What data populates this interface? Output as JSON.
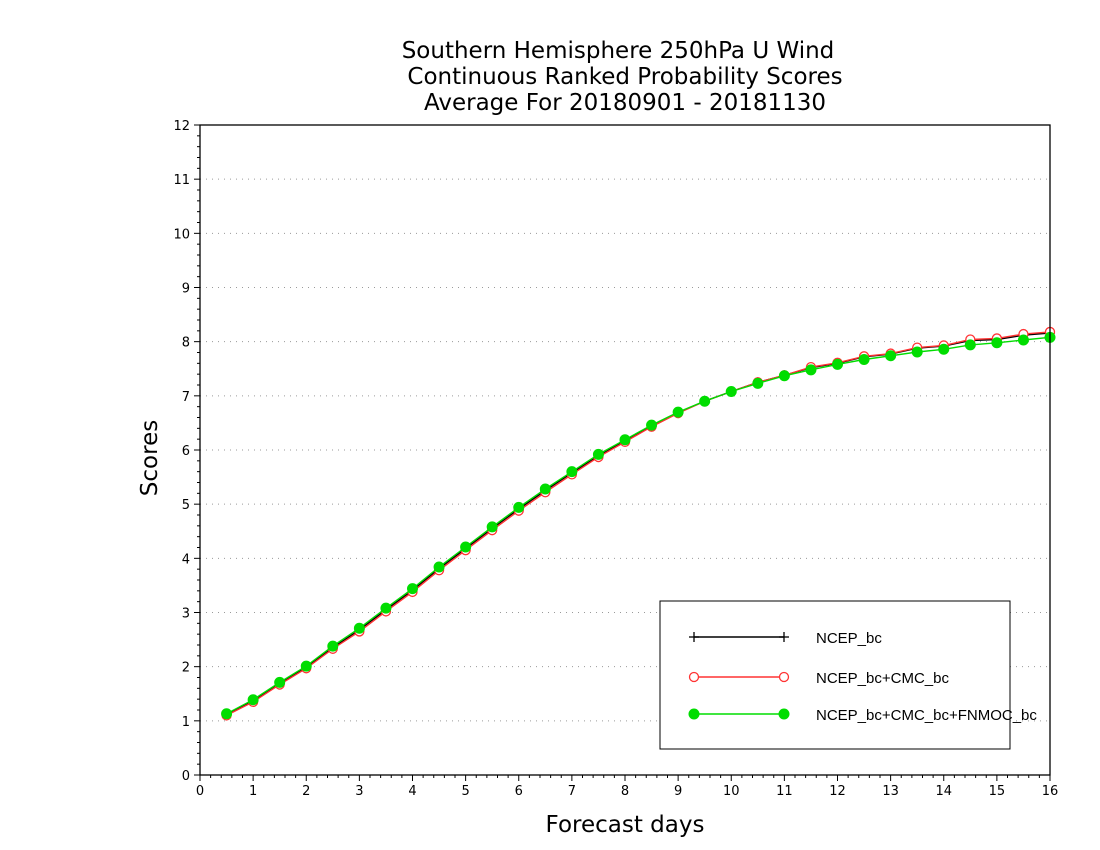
{
  "chart_data": {
    "type": "line",
    "title_lines": [
      "Southern Hemisphere 250hPa U Wind",
      "Continuous Ranked Probability Scores",
      "Average For 20180901 - 20181130"
    ],
    "xlabel": "Forecast days",
    "ylabel": "Scores",
    "xlim": [
      0,
      16
    ],
    "ylim": [
      0,
      12
    ],
    "xticks": [
      "0",
      "1",
      "2",
      "3",
      "4",
      "5",
      "6",
      "7",
      "8",
      "9",
      "10",
      "11",
      "12",
      "13",
      "14",
      "15",
      "16"
    ],
    "yticks": [
      "0",
      "1",
      "2",
      "3",
      "4",
      "5",
      "6",
      "7",
      "8",
      "9",
      "10",
      "11",
      "12"
    ],
    "grid": "horizontal-dotted",
    "legend_position": "bottom-right",
    "x": [
      0.5,
      1,
      1.5,
      2,
      2.5,
      3,
      3.5,
      4,
      4.5,
      5,
      5.5,
      6,
      6.5,
      7,
      7.5,
      8,
      8.5,
      9,
      9.5,
      10,
      10.5,
      11,
      11.5,
      12,
      12.5,
      13,
      13.5,
      14,
      14.5,
      15,
      15.5,
      16
    ],
    "series": [
      {
        "name": "NCEP_bc",
        "color": "#000000",
        "marker": "plus",
        "values": [
          1.12,
          1.37,
          1.69,
          1.99,
          2.35,
          2.68,
          3.05,
          3.41,
          3.81,
          4.18,
          4.55,
          4.91,
          5.25,
          5.58,
          5.89,
          6.17,
          6.44,
          6.69,
          6.9,
          7.08,
          7.25,
          7.38,
          7.52,
          7.6,
          7.72,
          7.77,
          7.88,
          7.92,
          8.02,
          8.04,
          8.12,
          8.16
        ]
      },
      {
        "name": "NCEP_bc+CMC_bc",
        "color": "#ff3333",
        "marker": "open-circle",
        "values": [
          1.1,
          1.35,
          1.67,
          1.97,
          2.33,
          2.65,
          3.02,
          3.38,
          3.78,
          4.15,
          4.52,
          4.88,
          5.22,
          5.55,
          5.87,
          6.15,
          6.43,
          6.68,
          6.9,
          7.08,
          7.25,
          7.38,
          7.53,
          7.61,
          7.73,
          7.78,
          7.89,
          7.93,
          8.04,
          8.06,
          8.14,
          8.18
        ]
      },
      {
        "name": "NCEP_bc+CMC_bc+FNMOC_bc",
        "color": "#00dd00",
        "marker": "filled-circle",
        "values": [
          1.13,
          1.39,
          1.71,
          2.01,
          2.38,
          2.71,
          3.08,
          3.44,
          3.84,
          4.21,
          4.58,
          4.94,
          5.28,
          5.6,
          5.92,
          6.19,
          6.46,
          6.7,
          6.9,
          7.08,
          7.23,
          7.37,
          7.48,
          7.58,
          7.67,
          7.74,
          7.81,
          7.86,
          7.94,
          7.98,
          8.03,
          8.08
        ]
      }
    ]
  }
}
